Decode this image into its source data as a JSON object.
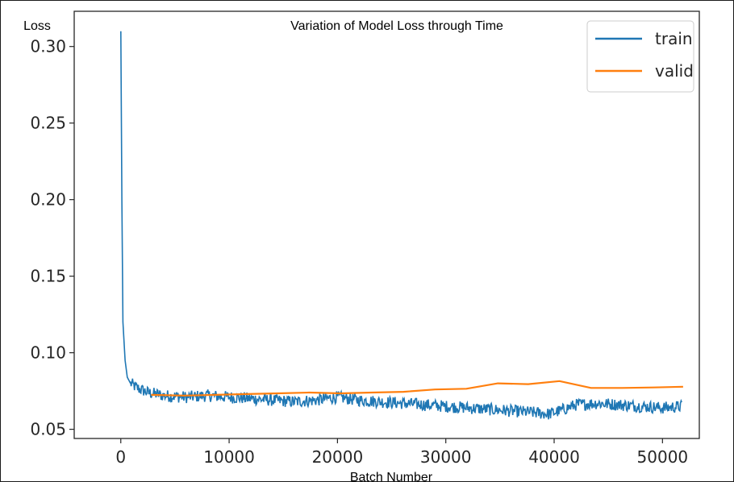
{
  "chart_data": {
    "type": "line",
    "title": "Variation of Model Loss through Time",
    "xlabel": "Batch Number",
    "ylabel": "Loss",
    "xlim": [
      -4300,
      53400
    ],
    "ylim": [
      0.044,
      0.323
    ],
    "x_ticks": [
      0,
      10000,
      20000,
      30000,
      40000,
      50000
    ],
    "x_tick_labels": [
      "0",
      "10000",
      "20000",
      "30000",
      "40000",
      "50000"
    ],
    "y_ticks": [
      0.05,
      0.1,
      0.15,
      0.2,
      0.25,
      0.3
    ],
    "y_tick_labels": [
      "0.05",
      "0.10",
      "0.15",
      "0.20",
      "0.25",
      "0.30"
    ],
    "grid": false,
    "legend": "top-right",
    "colors": {
      "train": "#1f77b4",
      "valid": "#ff7f0e",
      "axes": "#262626"
    },
    "series": [
      {
        "name": "train",
        "x": [
          0,
          100,
          200,
          400,
          600,
          900,
          1500,
          2500,
          4000,
          6000,
          8000,
          10000,
          12000,
          14000,
          16000,
          18000,
          20000,
          22000,
          24000,
          26000,
          28000,
          30000,
          32000,
          34000,
          36000,
          38000,
          39500,
          40500,
          42000,
          44000,
          46000,
          48000,
          50000,
          51800
        ],
        "values": [
          0.31,
          0.2,
          0.12,
          0.095,
          0.084,
          0.08,
          0.077,
          0.074,
          0.072,
          0.071,
          0.072,
          0.071,
          0.07,
          0.069,
          0.068,
          0.069,
          0.071,
          0.069,
          0.068,
          0.067,
          0.066,
          0.065,
          0.064,
          0.063,
          0.062,
          0.061,
          0.06,
          0.062,
          0.066,
          0.067,
          0.066,
          0.065,
          0.064,
          0.065
        ],
        "noise_amplitude": 0.004
      },
      {
        "name": "valid",
        "x": [
          2800,
          5800,
          8700,
          11600,
          14500,
          17400,
          20300,
          23200,
          26100,
          29000,
          31900,
          34800,
          37600,
          40500,
          43400,
          46300,
          49200,
          51900
        ],
        "values": [
          0.0725,
          0.072,
          0.0725,
          0.073,
          0.0735,
          0.074,
          0.0735,
          0.074,
          0.0745,
          0.076,
          0.0765,
          0.08,
          0.0795,
          0.0815,
          0.077,
          0.077,
          0.0773,
          0.0778
        ]
      }
    ]
  }
}
